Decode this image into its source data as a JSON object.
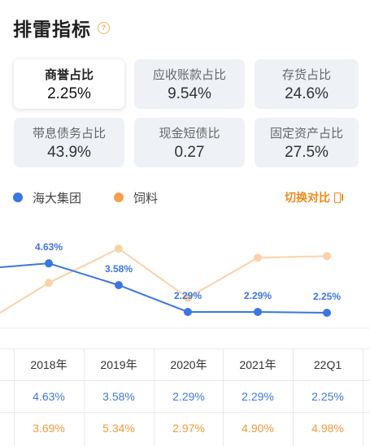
{
  "header": {
    "title": "排雷指标",
    "help_icon": "question-circle-icon"
  },
  "cards": [
    {
      "label": "商誉占比",
      "value": "2.25%",
      "active": true
    },
    {
      "label": "应收账款占比",
      "value": "9.54%",
      "active": false
    },
    {
      "label": "存货占比",
      "value": "24.6%",
      "active": false
    },
    {
      "label": "带息债务占比",
      "value": "43.9%",
      "active": false
    },
    {
      "label": "现金短债比",
      "value": "0.27",
      "active": false
    },
    {
      "label": "固定资产占比",
      "value": "27.5%",
      "active": false
    }
  ],
  "legend": {
    "company": {
      "label": "海大集团",
      "color": "#3c76e0"
    },
    "industry": {
      "label": "饲料",
      "color": "#f5a04a"
    }
  },
  "switch": {
    "label": "切换对比",
    "icon": "switch-compare-icon"
  },
  "chart_data": {
    "type": "line",
    "categories": [
      "2018年",
      "2019年",
      "2020年",
      "2021年",
      "22Q1"
    ],
    "series": [
      {
        "name": "海大集团",
        "color": "#3c76e0",
        "values": [
          4.63,
          3.58,
          2.29,
          2.29,
          2.25
        ],
        "labels": [
          "4.63%",
          "3.58%",
          "2.29%",
          "2.29%",
          "2.25%"
        ]
      },
      {
        "name": "饲料",
        "color": "#fbd2a8",
        "values": [
          3.69,
          5.34,
          2.97,
          4.9,
          4.98
        ]
      }
    ],
    "grid": false
  },
  "table": {
    "headers": [
      "2018年",
      "2019年",
      "2020年",
      "2021年",
      "22Q1"
    ],
    "rows": [
      [
        "4.63%",
        "3.58%",
        "2.29%",
        "2.29%",
        "2.25%"
      ],
      [
        "3.69%",
        "5.34%",
        "2.97%",
        "4.90%",
        "4.98%"
      ]
    ]
  }
}
